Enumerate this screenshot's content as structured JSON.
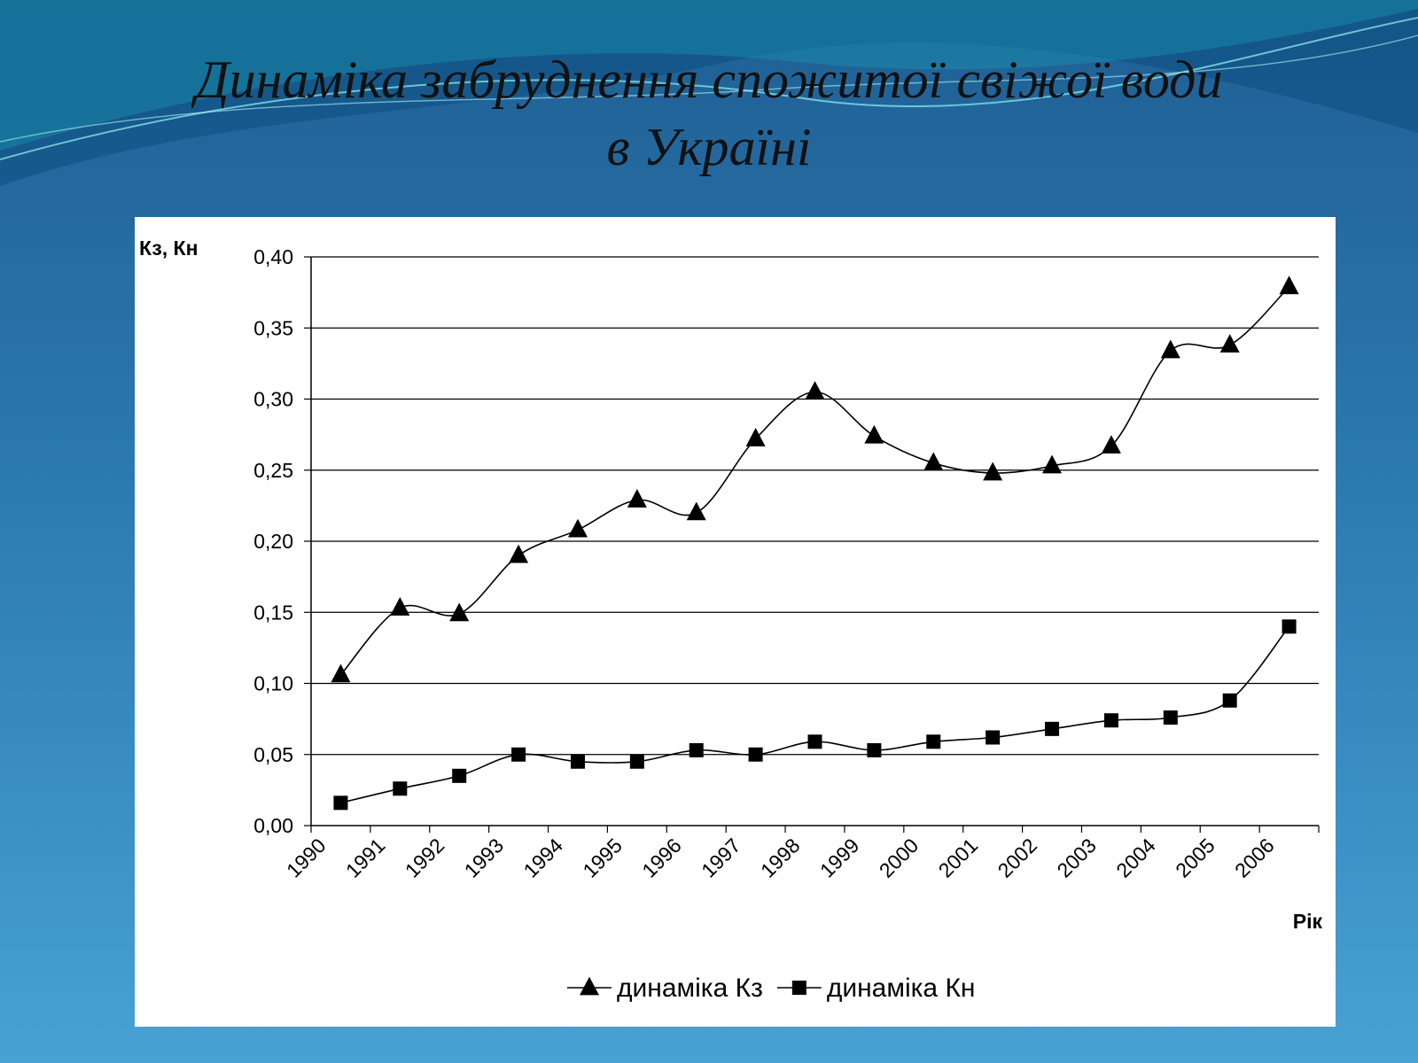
{
  "slide": {
    "title_line1": "Динаміка забруднення спожитої свіжої води",
    "title_line2": "в Україні"
  },
  "colors": {
    "background_top": "#1f5f93",
    "background_bottom": "#47a3d3",
    "panel": "#ffffff",
    "series": "#000000"
  },
  "chart_data": {
    "type": "line",
    "title": "",
    "xlabel": "Рік",
    "ylabel": "Кз, Кн",
    "ylim": [
      0,
      0.4
    ],
    "y_ticks": [
      "0,00",
      "0,05",
      "0,10",
      "0,15",
      "0,20",
      "0,25",
      "0,30",
      "0,35",
      "0,40"
    ],
    "categories": [
      "1990",
      "1991",
      "1992",
      "1993",
      "1994",
      "1995",
      "1996",
      "1997",
      "1998",
      "1999",
      "2000",
      "2001",
      "2002",
      "2003",
      "2004",
      "2005",
      "2006"
    ],
    "grid": true,
    "legend_position": "bottom",
    "series": [
      {
        "name": "динаміка Кз",
        "marker": "triangle",
        "values": [
          0.106,
          0.153,
          0.149,
          0.19,
          0.208,
          0.229,
          0.22,
          0.272,
          0.305,
          0.274,
          0.255,
          0.248,
          0.253,
          0.267,
          0.334,
          0.338,
          0.379
        ]
      },
      {
        "name": "динаміка Кн",
        "marker": "square",
        "values": [
          0.016,
          0.026,
          0.035,
          0.05,
          0.045,
          0.045,
          0.053,
          0.05,
          0.059,
          0.053,
          0.059,
          0.062,
          0.068,
          0.074,
          0.076,
          0.088,
          0.14
        ]
      }
    ]
  }
}
